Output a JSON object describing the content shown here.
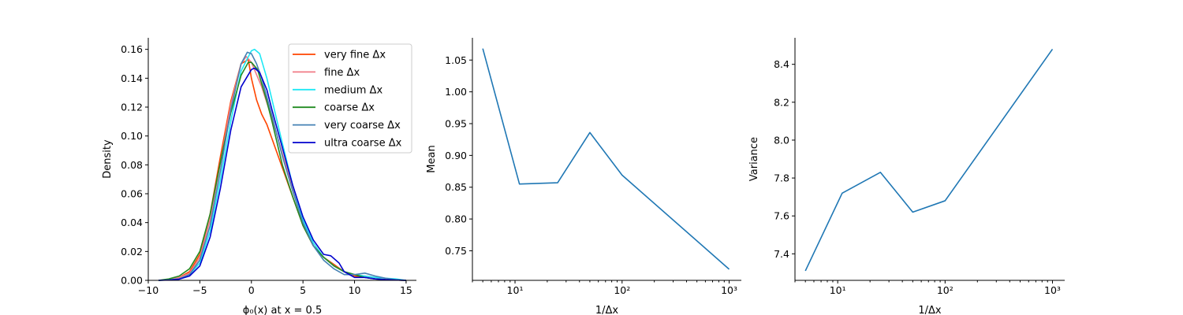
{
  "chart_data": [
    {
      "type": "line",
      "panel": "density",
      "xlabel": "ϕ₀(x) at x = 0.5",
      "ylabel": "Density",
      "xlim": [
        -10,
        16
      ],
      "ylim": [
        0,
        0.168
      ],
      "xticks": [
        -10,
        -5,
        0,
        5,
        10,
        15
      ],
      "xtick_labels": [
        "−10",
        "−5",
        "0",
        "5",
        "10",
        "15"
      ],
      "yticks": [
        0,
        0.02,
        0.04,
        0.06,
        0.08,
        0.1,
        0.12,
        0.14,
        0.16
      ],
      "ytick_labels": [
        "0.00",
        "0.02",
        "0.04",
        "0.06",
        "0.08",
        "0.10",
        "0.12",
        "0.14",
        "0.16"
      ],
      "legend_position": "top-right",
      "grid": false,
      "series": [
        {
          "name": "very fine Δx",
          "color": "#ff4500",
          "x": [
            -9,
            -8,
            -7,
            -6,
            -5,
            -4,
            -3,
            -2,
            -1,
            -0.3,
            0,
            0.5,
            1,
            1.5,
            2,
            3,
            4,
            5,
            6,
            7,
            8,
            9,
            10,
            11,
            12,
            13,
            14,
            15
          ],
          "y": [
            0.0,
            0.0005,
            0.002,
            0.006,
            0.018,
            0.046,
            0.086,
            0.124,
            0.15,
            0.153,
            0.14,
            0.125,
            0.115,
            0.108,
            0.098,
            0.078,
            0.058,
            0.038,
            0.024,
            0.016,
            0.011,
            0.006,
            0.003,
            0.002,
            0.001,
            0.0005,
            0.0002,
            0.0
          ]
        },
        {
          "name": "fine Δx",
          "color": "#f07a86",
          "x": [
            -9,
            -8,
            -7,
            -6,
            -5,
            -4,
            -3,
            -2,
            -1,
            -0.5,
            0,
            1,
            2,
            3,
            4,
            5,
            6,
            7,
            8,
            9,
            10,
            11,
            12,
            13,
            14,
            15
          ],
          "y": [
            0.0,
            0.0005,
            0.002,
            0.005,
            0.016,
            0.042,
            0.082,
            0.122,
            0.15,
            0.155,
            0.151,
            0.134,
            0.112,
            0.088,
            0.064,
            0.04,
            0.024,
            0.016,
            0.01,
            0.006,
            0.004,
            0.003,
            0.002,
            0.001,
            0.0005,
            0.0
          ]
        },
        {
          "name": "medium Δx",
          "color": "#1ee8f5",
          "x": [
            -9,
            -8,
            -7,
            -6,
            -5,
            -4,
            -3,
            -2,
            -1,
            0,
            0.3,
            0.8,
            1.5,
            2,
            3,
            4,
            5,
            6,
            7,
            8,
            9,
            10,
            11,
            12,
            13,
            14,
            15
          ],
          "y": [
            0.0,
            0.0003,
            0.001,
            0.004,
            0.012,
            0.034,
            0.07,
            0.11,
            0.145,
            0.159,
            0.16,
            0.157,
            0.14,
            0.125,
            0.095,
            0.066,
            0.042,
            0.026,
            0.016,
            0.01,
            0.006,
            0.004,
            0.003,
            0.002,
            0.0015,
            0.001,
            0.0
          ]
        },
        {
          "name": "coarse Δx",
          "color": "#228b22",
          "x": [
            -9,
            -8,
            -7,
            -6,
            -5,
            -4,
            -3,
            -2,
            -1,
            -0.3,
            0,
            0.6,
            1.5,
            2,
            3,
            4,
            5,
            6,
            7,
            8,
            9,
            10,
            11,
            12,
            13,
            14,
            15
          ],
          "y": [
            0.0,
            0.001,
            0.003,
            0.008,
            0.02,
            0.046,
            0.082,
            0.116,
            0.142,
            0.151,
            0.151,
            0.146,
            0.124,
            0.11,
            0.08,
            0.058,
            0.038,
            0.024,
            0.016,
            0.01,
            0.006,
            0.004,
            0.002,
            0.001,
            0.0005,
            0.0002,
            0.0
          ]
        },
        {
          "name": "very coarse Δx",
          "color": "#4682b4",
          "x": [
            -9,
            -8,
            -7,
            -6,
            -5,
            -4,
            -3,
            -2,
            -1,
            -0.4,
            0,
            0.5,
            1,
            2,
            3,
            4,
            5,
            6,
            7,
            8,
            9,
            10,
            11,
            12,
            13,
            14,
            15
          ],
          "y": [
            0.0,
            0.0003,
            0.001,
            0.004,
            0.014,
            0.038,
            0.076,
            0.118,
            0.15,
            0.158,
            0.157,
            0.15,
            0.14,
            0.114,
            0.086,
            0.062,
            0.04,
            0.024,
            0.014,
            0.008,
            0.004,
            0.004,
            0.005,
            0.003,
            0.0015,
            0.0005,
            0.0
          ]
        },
        {
          "name": "ultra coarse Δx",
          "color": "#0000cd",
          "x": [
            -9,
            -8,
            -7,
            -6,
            -5,
            -4,
            -3,
            -2,
            -1,
            0,
            0.3,
            0.8,
            1.5,
            2,
            3,
            4,
            5,
            6,
            7,
            7.7,
            8.5,
            9,
            10,
            11,
            12,
            13,
            14,
            15
          ],
          "y": [
            0.0,
            0.0002,
            0.0008,
            0.003,
            0.01,
            0.03,
            0.064,
            0.104,
            0.134,
            0.146,
            0.147,
            0.144,
            0.132,
            0.118,
            0.092,
            0.066,
            0.044,
            0.028,
            0.018,
            0.017,
            0.012,
            0.006,
            0.002,
            0.002,
            0.001,
            0.0005,
            0.0002,
            0.0
          ]
        }
      ]
    },
    {
      "type": "line",
      "panel": "mean",
      "xlabel": "1/Δx",
      "ylabel": "Mean",
      "xscale": "log",
      "xlim": [
        4.0,
        1300
      ],
      "ylim": [
        0.7035,
        1.085
      ],
      "xticks": [
        10,
        100,
        1000
      ],
      "xtick_labels": [
        "10¹",
        "10²",
        "10³"
      ],
      "yticks": [
        0.75,
        0.8,
        0.85,
        0.9,
        0.95,
        1.0,
        1.05
      ],
      "ytick_labels": [
        "0.75",
        "0.80",
        "0.85",
        "0.90",
        "0.95",
        "1.00",
        "1.05"
      ],
      "grid": false,
      "series": [
        {
          "color": "#1f77b4",
          "x": [
            5,
            11,
            25,
            50,
            100,
            1000
          ],
          "y": [
            1.068,
            0.855,
            0.857,
            0.936,
            0.869,
            0.721
          ]
        }
      ]
    },
    {
      "type": "line",
      "panel": "variance",
      "xlabel": "1/Δx",
      "ylabel": "Variance",
      "xscale": "log",
      "xlim": [
        4.0,
        1300
      ],
      "ylim": [
        7.26,
        8.54
      ],
      "xticks": [
        10,
        100,
        1000
      ],
      "xtick_labels": [
        "10¹",
        "10²",
        "10³"
      ],
      "yticks": [
        7.4,
        7.6,
        7.8,
        8.0,
        8.2,
        8.4
      ],
      "ytick_labels": [
        "7.4",
        "7.6",
        "7.8",
        "8.0",
        "8.2",
        "8.4"
      ],
      "grid": false,
      "series": [
        {
          "color": "#1f77b4",
          "x": [
            5,
            11,
            25,
            50,
            100,
            1000
          ],
          "y": [
            7.31,
            7.72,
            7.83,
            7.62,
            7.68,
            8.48
          ]
        }
      ]
    }
  ]
}
